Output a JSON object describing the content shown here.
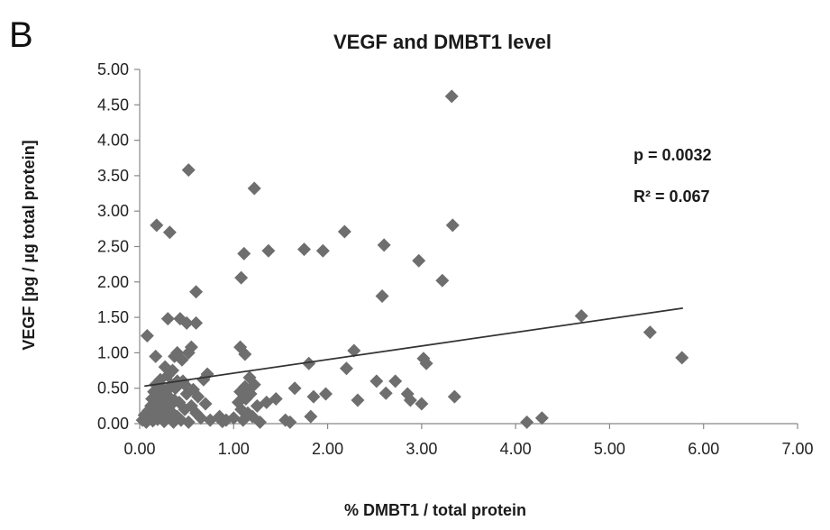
{
  "chart_data": {
    "type": "scatter",
    "panel_label": "B",
    "title": "VEGF and DMBT1 level",
    "xlabel": "% DMBT1 / total protein",
    "ylabel": "VEGF [pg / µg total protein]",
    "xlim": [
      0,
      7
    ],
    "ylim": [
      0,
      5
    ],
    "x_ticks": [
      "0.00",
      "1.00",
      "2.00",
      "3.00",
      "4.00",
      "5.00",
      "6.00",
      "7.00"
    ],
    "y_ticks": [
      "0.00",
      "0.50",
      "1.00",
      "1.50",
      "2.00",
      "2.50",
      "3.00",
      "3.50",
      "4.00",
      "4.50",
      "5.00"
    ],
    "annotations": {
      "p_value": "p = 0.0032",
      "r_squared": "R² = 0.067"
    },
    "trendline": {
      "x": [
        0.05,
        5.78
      ],
      "y": [
        0.53,
        1.63
      ]
    },
    "marker_color": "#6e6e6e",
    "line_color": "#333333",
    "points": [
      [
        0.03,
        0.05
      ],
      [
        0.05,
        0.12
      ],
      [
        0.07,
        0.02
      ],
      [
        0.09,
        0.18
      ],
      [
        0.1,
        0.08
      ],
      [
        0.12,
        0.25
      ],
      [
        0.13,
        0.35
      ],
      [
        0.14,
        0.04
      ],
      [
        0.15,
        0.45
      ],
      [
        0.16,
        0.15
      ],
      [
        0.17,
        0.55
      ],
      [
        0.18,
        0.28
      ],
      [
        0.19,
        0.06
      ],
      [
        0.2,
        0.4
      ],
      [
        0.21,
        0.2
      ],
      [
        0.22,
        0.62
      ],
      [
        0.23,
        0.1
      ],
      [
        0.24,
        0.5
      ],
      [
        0.25,
        0.32
      ],
      [
        0.26,
        0.03
      ],
      [
        0.27,
        0.22
      ],
      [
        0.28,
        0.45
      ],
      [
        0.29,
        0.12
      ],
      [
        0.3,
        0.68
      ],
      [
        0.31,
        0.38
      ],
      [
        0.32,
        0.08
      ],
      [
        0.33,
        0.26
      ],
      [
        0.34,
        0.55
      ],
      [
        0.35,
        0.15
      ],
      [
        0.36,
        0.02
      ],
      [
        0.37,
        0.33
      ],
      [
        0.38,
        0.5
      ],
      [
        0.4,
        0.1
      ],
      [
        0.42,
        0.3
      ],
      [
        0.44,
        0.05
      ],
      [
        0.46,
        0.6
      ],
      [
        0.48,
        0.2
      ],
      [
        0.5,
        0.42
      ],
      [
        0.52,
        0.02
      ],
      [
        0.55,
        0.25
      ],
      [
        0.57,
        0.48
      ],
      [
        0.6,
        0.15
      ],
      [
        0.62,
        0.38
      ],
      [
        0.65,
        0.08
      ],
      [
        0.68,
        0.62
      ],
      [
        0.7,
        0.28
      ],
      [
        0.72,
        0.7
      ],
      [
        0.75,
        0.05
      ],
      [
        0.08,
        1.24
      ],
      [
        0.17,
        0.95
      ],
      [
        0.27,
        0.8
      ],
      [
        0.37,
        0.95
      ],
      [
        0.4,
        1.0
      ],
      [
        0.45,
        0.9
      ],
      [
        0.52,
        1.0
      ],
      [
        0.55,
        1.08
      ],
      [
        0.43,
        1.48
      ],
      [
        0.3,
        1.48
      ],
      [
        0.5,
        1.42
      ],
      [
        0.6,
        1.42
      ],
      [
        0.6,
        1.86
      ],
      [
        0.18,
        2.8
      ],
      [
        0.32,
        2.7
      ],
      [
        0.52,
        3.58
      ],
      [
        0.4,
        0.6
      ],
      [
        0.48,
        0.55
      ],
      [
        0.35,
        0.75
      ],
      [
        0.25,
        0.42
      ],
      [
        0.85,
        0.1
      ],
      [
        0.88,
        0.03
      ],
      [
        0.92,
        0.05
      ],
      [
        1.0,
        0.08
      ],
      [
        1.05,
        0.3
      ],
      [
        1.07,
        0.45
      ],
      [
        1.08,
        0.2
      ],
      [
        1.1,
        0.05
      ],
      [
        1.12,
        0.52
      ],
      [
        1.13,
        0.35
      ],
      [
        1.15,
        0.15
      ],
      [
        1.17,
        0.65
      ],
      [
        1.18,
        0.42
      ],
      [
        1.2,
        0.1
      ],
      [
        1.22,
        0.55
      ],
      [
        1.25,
        0.25
      ],
      [
        1.28,
        0.02
      ],
      [
        1.07,
        1.08
      ],
      [
        1.12,
        0.98
      ],
      [
        1.08,
        2.06
      ],
      [
        1.11,
        2.4
      ],
      [
        1.22,
        3.32
      ],
      [
        1.37,
        2.44
      ],
      [
        1.35,
        0.3
      ],
      [
        1.45,
        0.35
      ],
      [
        1.55,
        0.05
      ],
      [
        1.6,
        0.02
      ],
      [
        1.65,
        0.5
      ],
      [
        1.75,
        2.46
      ],
      [
        1.8,
        0.85
      ],
      [
        1.82,
        0.1
      ],
      [
        1.85,
        0.38
      ],
      [
        1.95,
        2.44
      ],
      [
        1.98,
        0.42
      ],
      [
        2.18,
        2.71
      ],
      [
        2.2,
        0.78
      ],
      [
        2.28,
        1.03
      ],
      [
        2.32,
        0.33
      ],
      [
        2.52,
        0.6
      ],
      [
        2.58,
        1.8
      ],
      [
        2.6,
        2.52
      ],
      [
        2.62,
        0.43
      ],
      [
        2.72,
        0.6
      ],
      [
        2.85,
        0.42
      ],
      [
        2.88,
        0.33
      ],
      [
        2.97,
        2.3
      ],
      [
        3.0,
        0.28
      ],
      [
        3.02,
        0.92
      ],
      [
        3.05,
        0.85
      ],
      [
        3.22,
        2.02
      ],
      [
        3.32,
        4.62
      ],
      [
        3.33,
        2.8
      ],
      [
        3.35,
        0.38
      ],
      [
        4.12,
        0.02
      ],
      [
        4.28,
        0.08
      ],
      [
        4.7,
        1.52
      ],
      [
        5.43,
        1.29
      ],
      [
        5.77,
        0.93
      ]
    ]
  }
}
